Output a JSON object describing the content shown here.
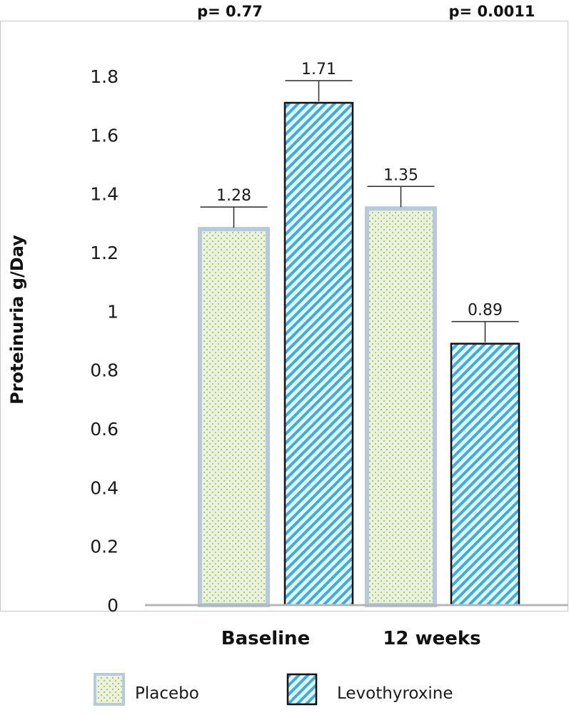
{
  "chart_data": {
    "type": "bar",
    "categories": [
      "Baseline",
      "12 weeks"
    ],
    "series": [
      {
        "name": "Placebo",
        "values": [
          1.28,
          1.35
        ],
        "fill": "#eaf2dc",
        "dots": "#9cc56a",
        "border": "#b7c9dc"
      },
      {
        "name": "Levothyroxine",
        "values": [
          1.71,
          0.89
        ],
        "fill": "#e6f6fc",
        "stripes": "#3aaee0",
        "border": "#111111"
      }
    ],
    "data_labels": [
      [
        "1.28",
        "1.35"
      ],
      [
        "1.71",
        "0.89"
      ]
    ],
    "ylabel": "Proteinuria g/Day",
    "xlabel": "",
    "ylim": [
      0,
      1.8
    ],
    "yticks": [
      0,
      0.2,
      0.4,
      0.6,
      0.8,
      1,
      1.2,
      1.4,
      1.6,
      1.8
    ],
    "ytick_labels": [
      "0",
      "0.2",
      "0.4",
      "0.6",
      "0.8",
      "1",
      "1.2",
      "1.4",
      "1.6",
      "1.8"
    ],
    "annotations": [
      "p= 0.77",
      "p= 0.0011"
    ],
    "legend": [
      "Placebo",
      "Levothyroxine"
    ],
    "legend_position": "bottom",
    "grid": false
  }
}
